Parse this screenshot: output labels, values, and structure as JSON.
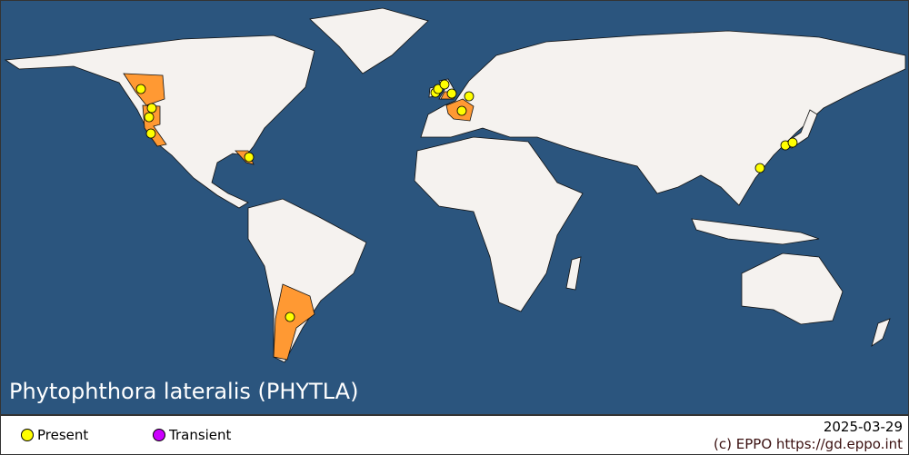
{
  "title": "Phytophthora lateralis (PHYTLA)",
  "colors": {
    "ocean": "#2b557e",
    "land": "#f5f2ef",
    "infested_region": "#ff9933",
    "present": "#ffff00",
    "transient": "#cc00ff"
  },
  "legend": [
    {
      "label": "Present",
      "color": "#ffff00"
    },
    {
      "label": "Transient",
      "color": "#cc00ff"
    }
  ],
  "date": "2025-03-29",
  "copyright": "(c) EPPO https://gd.eppo.int",
  "infested_regions": [
    "British Columbia",
    "Washington",
    "Oregon",
    "California",
    "Florida",
    "United Kingdom",
    "France",
    "Argentina"
  ],
  "records": [
    {
      "place": "British Columbia",
      "status": "Present"
    },
    {
      "place": "Washington",
      "status": "Present"
    },
    {
      "place": "Oregon",
      "status": "Present"
    },
    {
      "place": "California",
      "status": "Present"
    },
    {
      "place": "Florida",
      "status": "Present"
    },
    {
      "place": "Ireland",
      "status": "Present"
    },
    {
      "place": "Northern Ireland",
      "status": "Present"
    },
    {
      "place": "Scotland",
      "status": "Present"
    },
    {
      "place": "England",
      "status": "Present"
    },
    {
      "place": "Netherlands",
      "status": "Present"
    },
    {
      "place": "France",
      "status": "Present"
    },
    {
      "place": "Argentina",
      "status": "Present"
    },
    {
      "place": "Taiwan",
      "status": "Present"
    },
    {
      "place": "Japan (Kyushu)",
      "status": "Present"
    },
    {
      "place": "Japan (Shikoku)",
      "status": "Present"
    }
  ]
}
